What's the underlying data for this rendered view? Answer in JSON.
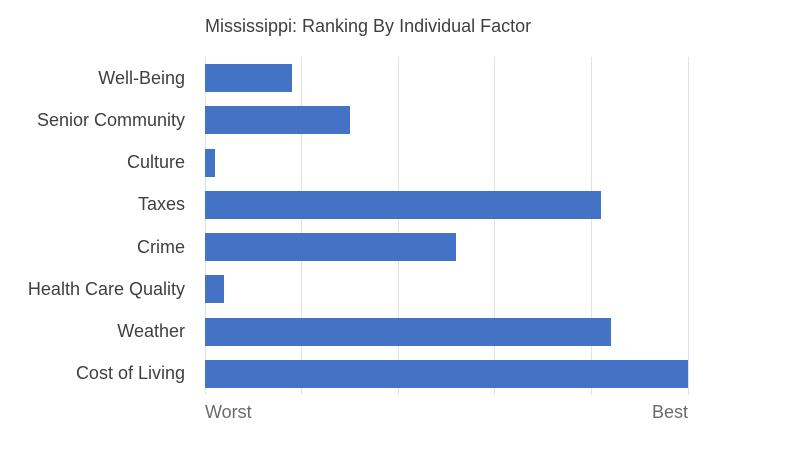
{
  "chart_data": {
    "type": "bar",
    "orientation": "horizontal",
    "title": "Mississippi: Ranking By Individual Factor",
    "categories": [
      "Well-Being",
      "Senior Community",
      "Culture",
      "Taxes",
      "Crime",
      "Health Care Quality",
      "Weather",
      "Cost of Living"
    ],
    "values": [
      9,
      15,
      1,
      41,
      26,
      2,
      42,
      50
    ],
    "xlim": [
      0,
      50
    ],
    "gridline_interval": 10,
    "grid": "vertical-only",
    "legend": "none",
    "x_axis": {
      "left_label": "Worst",
      "right_label": "Best"
    },
    "colors": {
      "bar": "#4472C4",
      "gridline": "#E2E2E2",
      "title_text": "#3F3F3F",
      "category_text": "#404040",
      "axis_text": "#6B6B6B",
      "background": "#FFFFFF"
    }
  }
}
